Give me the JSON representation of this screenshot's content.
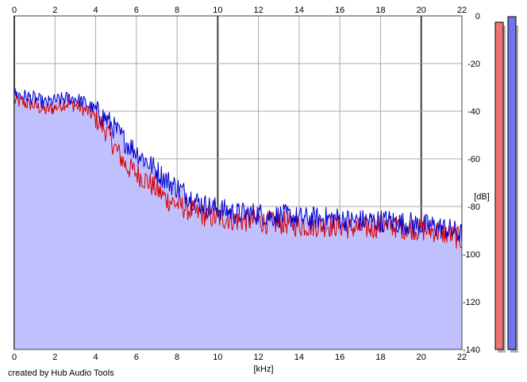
{
  "chart_data": {
    "type": "line",
    "xlabel": "[kHz]",
    "ylabel": "[dB]",
    "xlim": [
      0,
      22
    ],
    "ylim": [
      -140,
      0
    ],
    "x_ticks": [
      "0",
      "2",
      "4",
      "6",
      "8",
      "10",
      "12",
      "14",
      "16",
      "18",
      "20",
      "22"
    ],
    "y_ticks": [
      "0",
      "-20",
      "-40",
      "-60",
      "-80",
      "-100",
      "-120",
      "-140"
    ],
    "grid": true,
    "fill_color": "#c0c0ff",
    "series": [
      {
        "color": "#dd0000",
        "x": [
          0,
          0.5,
          1,
          1.5,
          2,
          2.5,
          3,
          3.5,
          4,
          4.5,
          5,
          5.5,
          6,
          6.5,
          7,
          7.5,
          8,
          8.5,
          9,
          9.5,
          10,
          10.5,
          11,
          11.5,
          12,
          12.5,
          13,
          13.5,
          14,
          14.5,
          15,
          15.5,
          16,
          16.5,
          17,
          17.5,
          18,
          18.5,
          19,
          19.5,
          20,
          20.5,
          21,
          21.5,
          22
        ],
        "y": [
          -35,
          -36,
          -37,
          -39,
          -38,
          -36,
          -37,
          -39,
          -42,
          -47,
          -55,
          -62,
          -65,
          -68,
          -72,
          -76,
          -78,
          -80,
          -82,
          -83,
          -84,
          -84,
          -85,
          -85,
          -85,
          -86,
          -86,
          -86,
          -87,
          -87,
          -87,
          -87,
          -87,
          -88,
          -88,
          -88,
          -87,
          -87,
          -88,
          -88,
          -89,
          -89,
          -90,
          -91,
          -93
        ]
      },
      {
        "color": "#0000cc",
        "x": [
          0,
          0.5,
          1,
          1.5,
          2,
          2.5,
          3,
          3.5,
          4,
          4.5,
          5,
          5.5,
          6,
          6.5,
          7,
          7.5,
          8,
          8.5,
          9,
          9.5,
          10,
          10.5,
          11,
          11.5,
          12,
          12.5,
          13,
          13.5,
          14,
          14.5,
          15,
          15.5,
          16,
          16.5,
          17,
          17.5,
          18,
          18.5,
          19,
          19.5,
          20,
          20.5,
          21,
          21.5,
          22
        ],
        "y": [
          -32,
          -33,
          -34,
          -36,
          -35,
          -34,
          -34,
          -36,
          -39,
          -42,
          -47,
          -52,
          -56,
          -60,
          -64,
          -68,
          -71,
          -74,
          -77,
          -79,
          -80,
          -81,
          -82,
          -82,
          -82,
          -83,
          -83,
          -83,
          -84,
          -84,
          -84,
          -84,
          -84,
          -85,
          -85,
          -85,
          -85,
          -85,
          -86,
          -86,
          -87,
          -87,
          -88,
          -89,
          -91
        ]
      }
    ]
  },
  "meters": [
    {
      "color": "#ef7373",
      "value": -3
    },
    {
      "color": "#7373ef",
      "value": -1
    }
  ],
  "footer": "created by Hub Audio Tools"
}
